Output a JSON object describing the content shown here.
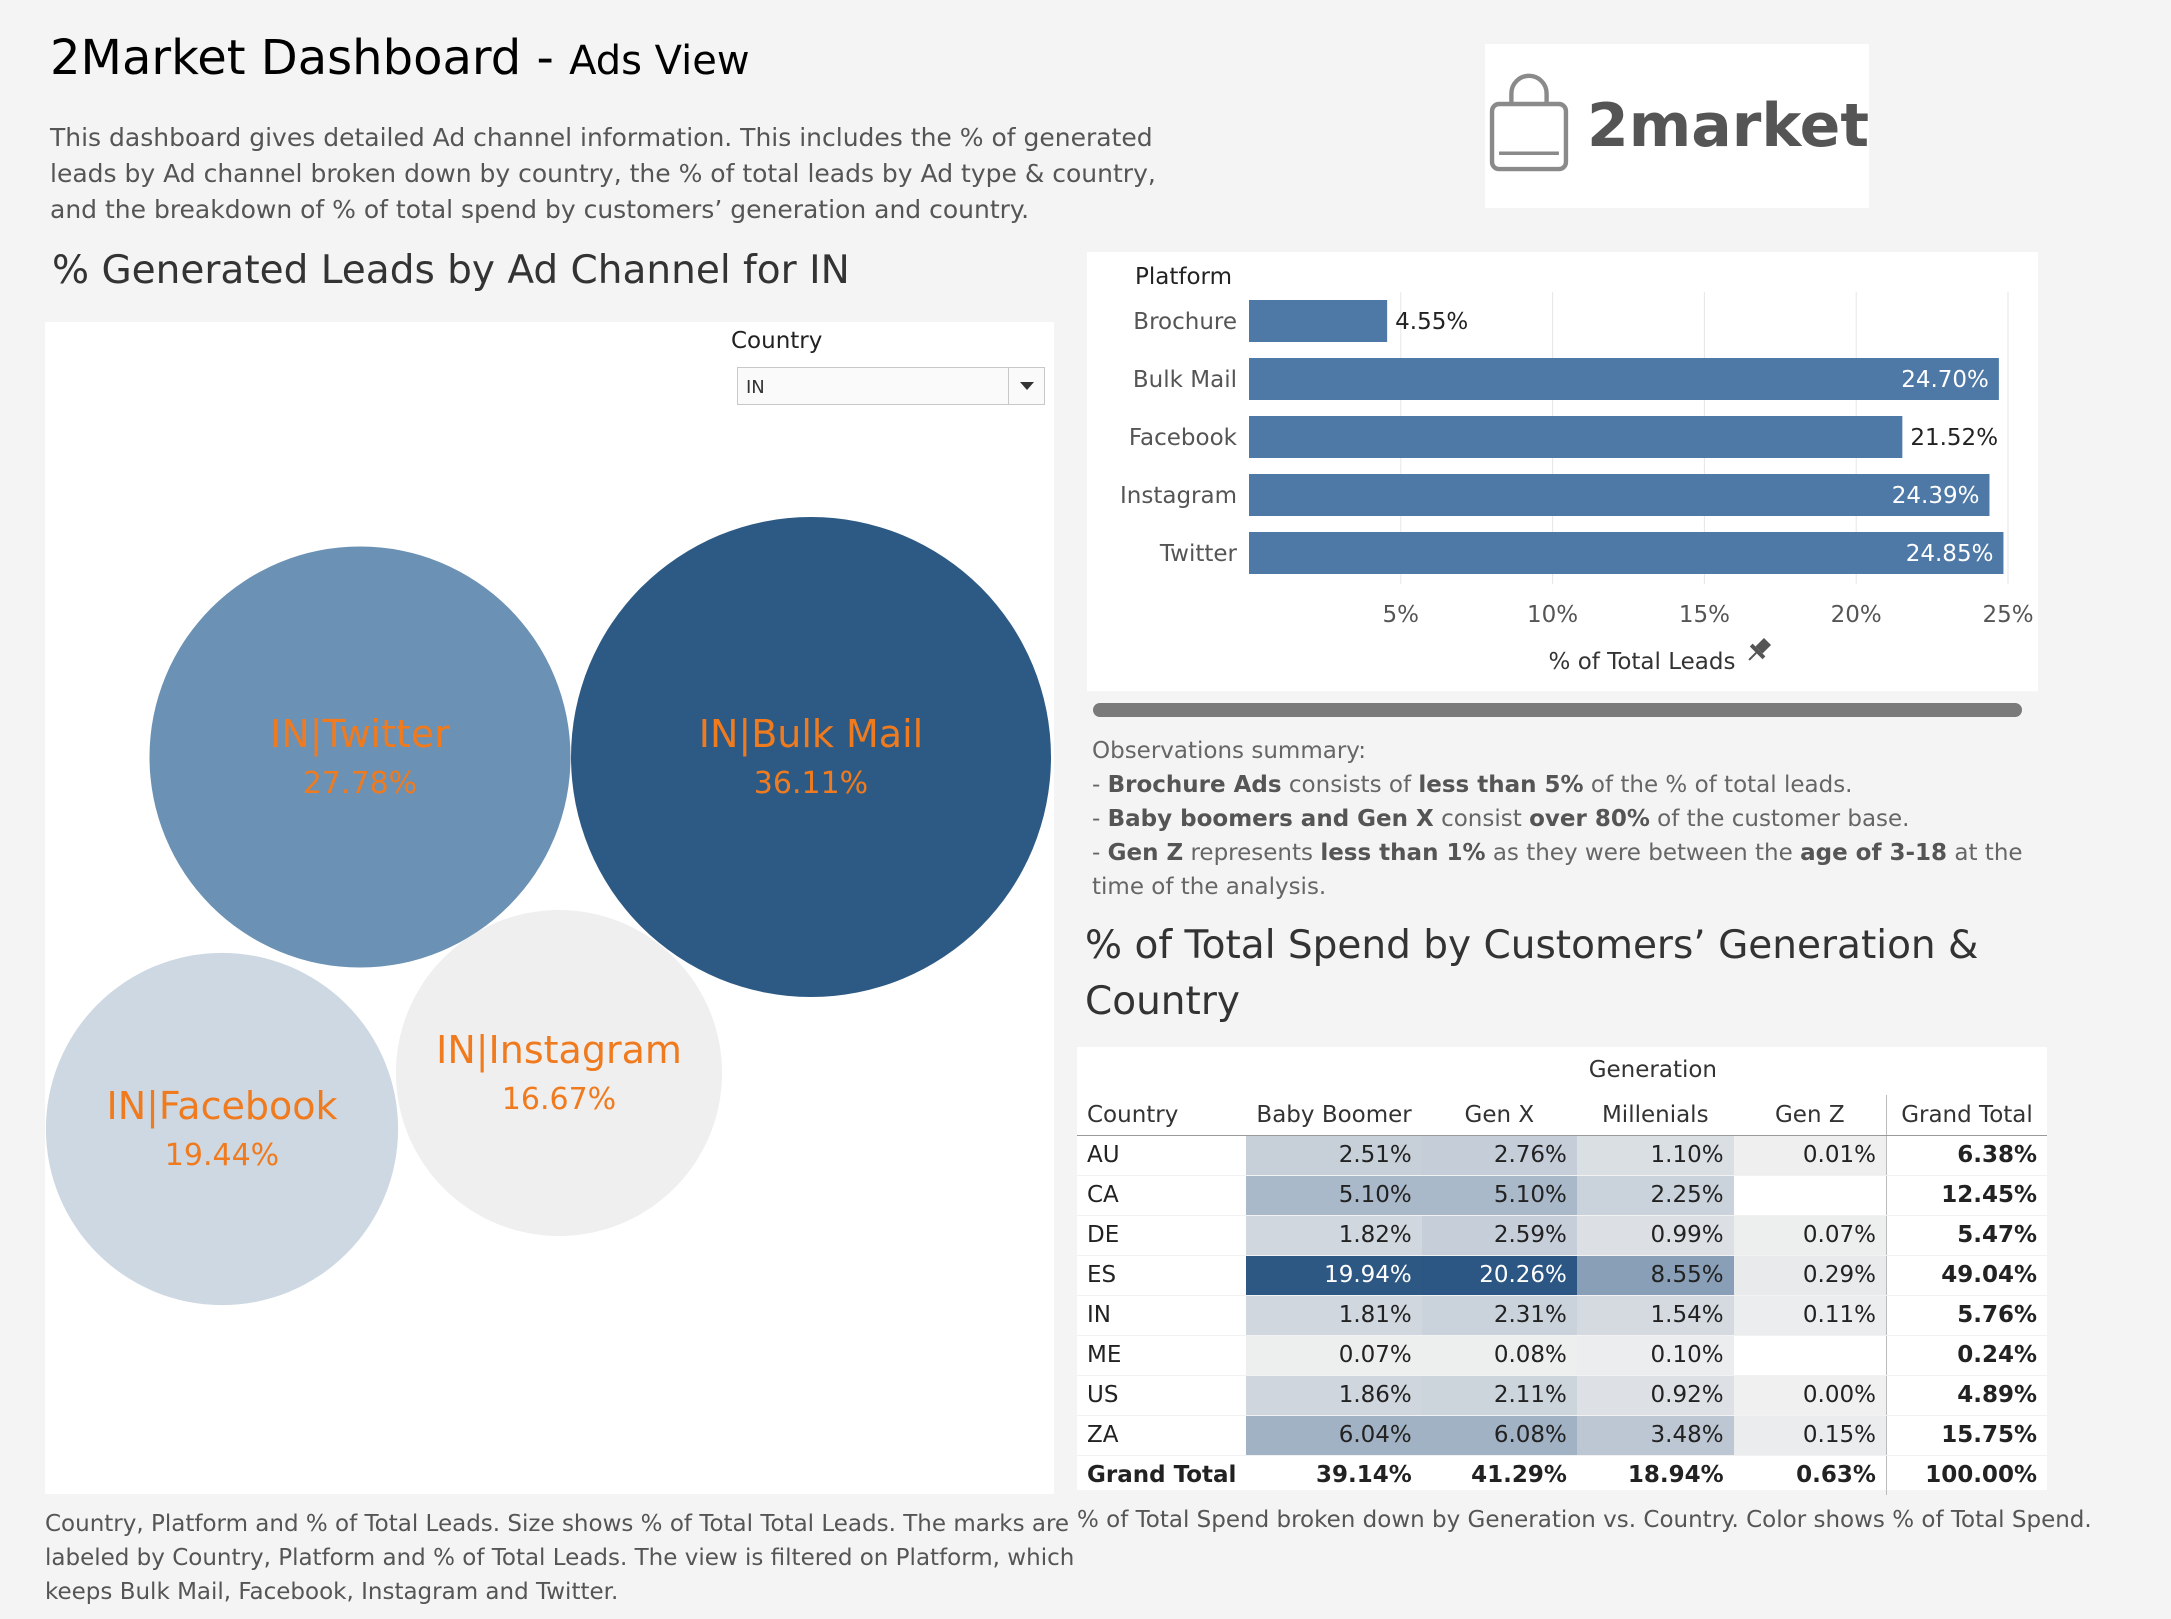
{
  "header": {
    "title": "2Market Dashboard -",
    "subtitle": "Ads View",
    "description": "This dashboard  gives detailed Ad channel information. This includes the % of generated leads by Ad channel broken down by country, the % of total leads by Ad type & country, and the breakdown of % of total spend by customers’ generation and country."
  },
  "logo": {
    "text": "2market",
    "icon": "shopping-bag-icon"
  },
  "bubble_section": {
    "title": "% Generated Leads by Ad Channel for IN",
    "filter_label": "Country",
    "filter_value": "IN",
    "footnote": "Country, Platform and % of Total Leads.  Size shows % of Total Total Leads.  The marks are labeled by Country, Platform and % of Total Leads. The view is filtered on Platform, which keeps Bulk Mail, Facebook, Instagram and Twitter."
  },
  "observations": {
    "heading": "Observations summary:"
  },
  "table_section": {
    "title": "% of Total Spend by Customers’ Generation & Country",
    "footnote": "% of Total Spend broken down by Generation vs. Country.  Color shows % of Total Spend."
  },
  "chart_data": [
    {
      "type": "bubble",
      "label_color": "#f07b1f",
      "bubbles": [
        {
          "label": "IN|Bulk Mail",
          "value": "36.11%",
          "pct": 36.11,
          "color": "#2d5a84"
        },
        {
          "label": "IN|Twitter",
          "value": "27.78%",
          "pct": 27.78,
          "color": "#6b91b4"
        },
        {
          "label": "IN|Facebook",
          "value": "19.44%",
          "pct": 19.44,
          "color": "#cdd8e2"
        },
        {
          "label": "IN|Instagram",
          "value": "16.67%",
          "pct": 16.67,
          "color": "#efefef"
        }
      ]
    },
    {
      "type": "bar",
      "orientation": "horizontal",
      "ylabel": "Platform",
      "xlabel": "% of Total Leads",
      "categories": [
        "Brochure",
        "Bulk Mail",
        "Facebook",
        "Instagram",
        "Twitter"
      ],
      "values": [
        4.55,
        24.7,
        21.52,
        24.39,
        24.85
      ],
      "value_labels": [
        "4.55%",
        "24.70%",
        "21.52%",
        "24.39%",
        "24.85%"
      ],
      "xlim": [
        0,
        25
      ],
      "xticks": [
        5,
        10,
        15,
        20,
        25
      ],
      "xtick_labels": [
        "5%",
        "10%",
        "15%",
        "20%",
        "25%"
      ],
      "bar_color": "#4e79a7",
      "grid": true
    },
    {
      "type": "table",
      "header_group": "Generation",
      "columns": [
        "Country",
        "Baby Boomer",
        "Gen X",
        "Millenials",
        "Gen Z",
        "Grand Total"
      ],
      "rows": [
        {
          "country": "AU",
          "values": [
            "2.51%",
            "2.76%",
            "1.10%",
            "0.01%"
          ],
          "total": "6.38%"
        },
        {
          "country": "CA",
          "values": [
            "5.10%",
            "5.10%",
            "2.25%",
            ""
          ],
          "total": "12.45%"
        },
        {
          "country": "DE",
          "values": [
            "1.82%",
            "2.59%",
            "0.99%",
            "0.07%"
          ],
          "total": "5.47%"
        },
        {
          "country": "ES",
          "values": [
            "19.94%",
            "20.26%",
            "8.55%",
            "0.29%"
          ],
          "total": "49.04%"
        },
        {
          "country": "IN",
          "values": [
            "1.81%",
            "2.31%",
            "1.54%",
            "0.11%"
          ],
          "total": "5.76%"
        },
        {
          "country": "ME",
          "values": [
            "0.07%",
            "0.08%",
            "0.10%",
            ""
          ],
          "total": "0.24%"
        },
        {
          "country": "US",
          "values": [
            "1.86%",
            "2.11%",
            "0.92%",
            "0.00%"
          ],
          "total": "4.89%"
        },
        {
          "country": "ZA",
          "values": [
            "6.04%",
            "6.08%",
            "3.48%",
            "0.15%"
          ],
          "total": "15.75%"
        }
      ],
      "grand_total": {
        "label": "Grand Total",
        "values": [
          "39.14%",
          "41.29%",
          "18.94%",
          "0.63%"
        ],
        "total": "100.00%"
      },
      "color_scale": [
        "#f0f0f0",
        "#2c5683"
      ]
    }
  ]
}
